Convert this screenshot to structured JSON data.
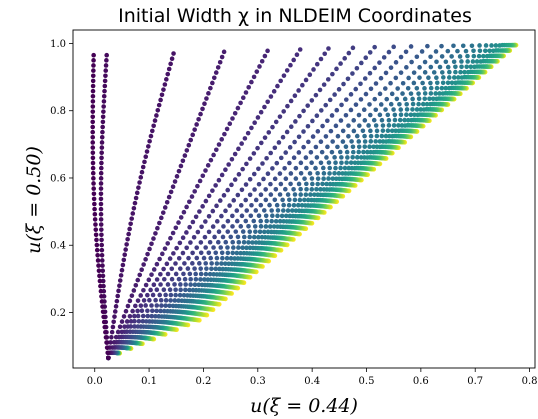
{
  "chart_data": {
    "type": "scatter",
    "title": "Initial Width χ in NLDEIM Coordinates",
    "xlabel": "u(ξ = 0.44)",
    "ylabel": "u(ξ = 0.50)",
    "xlim": [
      -0.04,
      0.81
    ],
    "ylim": [
      0.035,
      1.04
    ],
    "xticks": [
      "0.0",
      "0.1",
      "0.2",
      "0.3",
      "0.4",
      "0.5",
      "0.6",
      "0.7",
      "0.8"
    ],
    "xtick_values": [
      0.0,
      0.1,
      0.2,
      0.3,
      0.4,
      0.5,
      0.6,
      0.7,
      0.8
    ],
    "yticks": [
      "0.2",
      "0.4",
      "0.6",
      "0.8",
      "1.0"
    ],
    "ytick_values": [
      0.2,
      0.4,
      0.6,
      0.8,
      1.0
    ],
    "grid": false,
    "legend": false,
    "colormap": "viridis",
    "colormap_stops": [
      "#440154",
      "#482878",
      "#3e4989",
      "#31688e",
      "#26828e",
      "#1f9e89",
      "#35b779",
      "#6ece58",
      "#b5de2b",
      "#fde725"
    ],
    "series_count": 40,
    "points_per_series": 60,
    "series_start": [
      0.025,
      0.065
    ],
    "series_end_x": [
      -0.002,
      0.022,
      0.145,
      0.238,
      0.318,
      0.378,
      0.43,
      0.475,
      0.515,
      0.55,
      0.582,
      0.612,
      0.638,
      0.66,
      0.678,
      0.694,
      0.708,
      0.72,
      0.73,
      0.738,
      0.745,
      0.75,
      0.754,
      0.758,
      0.761,
      0.763,
      0.765,
      0.767,
      0.768,
      0.769,
      0.77,
      0.771,
      0.772,
      0.772,
      0.773,
      0.773,
      0.774,
      0.774,
      0.775,
      0.775
    ],
    "series_end_y": [
      0.965,
      0.965,
      0.97,
      0.975,
      0.978,
      0.982,
      0.985,
      0.987,
      0.989,
      0.99,
      0.991,
      0.992,
      0.992,
      0.993,
      0.993,
      0.993,
      0.994,
      0.994,
      0.994,
      0.994,
      0.994,
      0.995,
      0.995,
      0.995,
      0.995,
      0.995,
      0.995,
      0.995,
      0.995,
      0.995,
      0.995,
      0.995,
      0.995,
      0.995,
      0.995,
      0.995,
      0.995,
      0.995,
      0.995,
      0.995
    ]
  }
}
